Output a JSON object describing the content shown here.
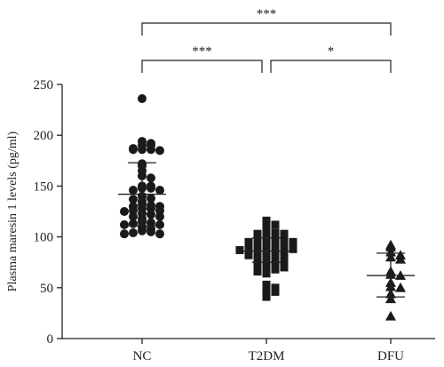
{
  "chart_data": {
    "type": "scatter",
    "ylabel": "Plasma maresin 1 levels (pg/ml)",
    "ylim": [
      0,
      250
    ],
    "yticks": [
      0,
      50,
      100,
      150,
      200,
      250
    ],
    "categories": [
      "NC",
      "T2DM",
      "DFU"
    ],
    "marker_color": "#1a1a1a",
    "groups": [
      {
        "name": "NC",
        "marker": "circle",
        "mean": 142,
        "sd_upper": 173,
        "sd_lower": 111,
        "values": [
          236,
          194,
          192,
          190,
          190,
          187,
          186,
          186,
          186,
          185,
          172,
          170,
          165,
          160,
          158,
          150,
          150,
          148,
          148,
          146,
          146,
          140,
          138,
          137,
          135,
          132,
          131,
          130,
          130,
          128,
          128,
          126,
          126,
          125,
          123,
          122,
          120,
          120,
          118,
          115,
          114,
          113,
          112,
          112,
          110,
          108,
          106,
          105,
          104,
          103,
          103
        ]
      },
      {
        "name": "T2DM",
        "marker": "square",
        "mean": 86,
        "sd_upper": 99,
        "sd_lower": 75,
        "values": [
          116,
          113,
          112,
          106,
          104,
          103,
          103,
          102,
          101,
          100,
          99,
          98,
          97,
          97,
          96,
          95,
          95,
          93,
          92,
          91,
          91,
          90,
          90,
          89,
          89,
          88,
          88,
          87,
          86,
          85,
          84,
          83,
          82,
          81,
          80,
          79,
          78,
          77,
          76,
          75,
          74,
          73,
          72,
          71,
          70,
          69,
          68,
          66,
          64,
          53,
          52,
          50,
          47,
          46,
          41
        ]
      },
      {
        "name": "DFU",
        "marker": "triangle",
        "mean": 62,
        "sd_upper": 84,
        "sd_lower": 41,
        "values": [
          92,
          90,
          85,
          82,
          80,
          78,
          66,
          63,
          62,
          55,
          51,
          50,
          44,
          39,
          22
        ]
      }
    ],
    "significance": [
      {
        "from": "NC",
        "to": "T2DM",
        "label": "***",
        "level": 1
      },
      {
        "from": "T2DM",
        "to": "DFU",
        "label": "*",
        "level": 1
      },
      {
        "from": "NC",
        "to": "DFU",
        "label": "***",
        "level": 2
      }
    ]
  }
}
